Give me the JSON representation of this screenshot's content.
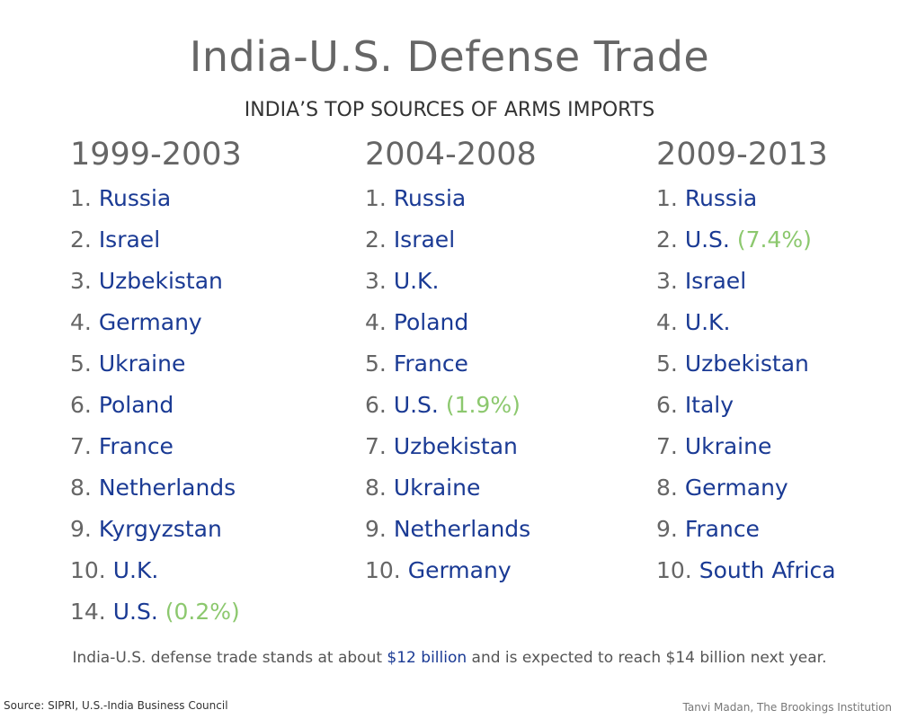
{
  "title": "India-U.S. Defense Trade",
  "subtitle": "INDIA’S TOP SOURCES OF ARMS IMPORTS",
  "columns": [
    {
      "period": "1999-2003",
      "items": [
        {
          "rank": "1.",
          "country": "Russia",
          "share": ""
        },
        {
          "rank": "2.",
          "country": "Israel",
          "share": ""
        },
        {
          "rank": "3.",
          "country": "Uzbekistan",
          "share": ""
        },
        {
          "rank": "4.",
          "country": "Germany",
          "share": ""
        },
        {
          "rank": "5.",
          "country": "Ukraine",
          "share": ""
        },
        {
          "rank": "6.",
          "country": "Poland",
          "share": ""
        },
        {
          "rank": "7.",
          "country": "France",
          "share": ""
        },
        {
          "rank": "8.",
          "country": "Netherlands",
          "share": ""
        },
        {
          "rank": "9.",
          "country": "Kyrgyzstan",
          "share": ""
        },
        {
          "rank": "10.",
          "country": "U.K.",
          "share": ""
        },
        {
          "rank": "14.",
          "country": "U.S.",
          "share": "(0.2%)"
        }
      ]
    },
    {
      "period": "2004-2008",
      "items": [
        {
          "rank": "1.",
          "country": "Russia",
          "share": ""
        },
        {
          "rank": "2.",
          "country": "Israel",
          "share": ""
        },
        {
          "rank": "3.",
          "country": "U.K.",
          "share": ""
        },
        {
          "rank": "4.",
          "country": "Poland",
          "share": ""
        },
        {
          "rank": "5.",
          "country": "France",
          "share": ""
        },
        {
          "rank": "6.",
          "country": "U.S.",
          "share": "(1.9%)"
        },
        {
          "rank": "7.",
          "country": "Uzbekistan",
          "share": ""
        },
        {
          "rank": "8.",
          "country": "Ukraine",
          "share": ""
        },
        {
          "rank": "9.",
          "country": "Netherlands",
          "share": ""
        },
        {
          "rank": "10.",
          "country": "Germany",
          "share": ""
        }
      ]
    },
    {
      "period": "2009-2013",
      "items": [
        {
          "rank": "1.",
          "country": "Russia",
          "share": ""
        },
        {
          "rank": "2.",
          "country": "U.S.",
          "share": "(7.4%)"
        },
        {
          "rank": "3.",
          "country": "Israel",
          "share": ""
        },
        {
          "rank": "4.",
          "country": "U.K.",
          "share": ""
        },
        {
          "rank": "5.",
          "country": "Uzbekistan",
          "share": ""
        },
        {
          "rank": "6.",
          "country": "Italy",
          "share": ""
        },
        {
          "rank": "7.",
          "country": "Ukraine",
          "share": ""
        },
        {
          "rank": "8.",
          "country": "Germany",
          "share": ""
        },
        {
          "rank": "9.",
          "country": "France",
          "share": ""
        },
        {
          "rank": "10.",
          "country": "South Africa",
          "share": ""
        }
      ]
    }
  ],
  "note": {
    "before": "India-U.S. defense trade stands at about ",
    "highlight": "$12 billion",
    "after": " and is expected to reach $14 billion next year."
  },
  "source": "Source: SIPRI, U.S.-India Business Council",
  "credit": "Tanvi Madan, The Brookings Institution",
  "colors": {
    "rank": "#666666",
    "country": "#1a3a94",
    "share": "#8cc86e"
  }
}
